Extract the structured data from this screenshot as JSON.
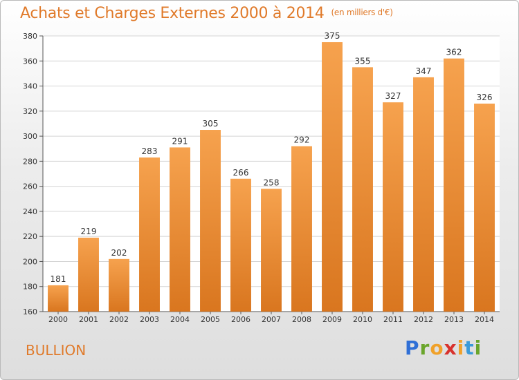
{
  "header": {
    "title": "Achats et Charges Externes 2000 à 2014",
    "unit": "(en milliers d'€)"
  },
  "place": "BULLION",
  "logo": {
    "p": "P",
    "r": "r",
    "o": "o",
    "x": "x",
    "i1": "i",
    "t": "t",
    "i2": "i"
  },
  "colors": {
    "bar_top": "#f6a24e",
    "bar_bottom": "#d9761f",
    "title": "#e07a2a"
  },
  "chart_data": {
    "type": "bar",
    "title": "Achats et Charges Externes 2000 à 2014",
    "subtitle": "(en milliers d'€)",
    "categories": [
      "2000",
      "2001",
      "2002",
      "2003",
      "2004",
      "2005",
      "2006",
      "2007",
      "2008",
      "2009",
      "2010",
      "2011",
      "2012",
      "2013",
      "2014"
    ],
    "values": [
      181,
      219,
      202,
      283,
      291,
      305,
      266,
      258,
      292,
      375,
      355,
      327,
      347,
      362,
      326
    ],
    "ylim": [
      160,
      380
    ],
    "yticks": [
      160,
      180,
      200,
      220,
      240,
      260,
      280,
      300,
      320,
      340,
      360,
      380
    ],
    "grid": true,
    "xlabel": "",
    "ylabel": ""
  }
}
